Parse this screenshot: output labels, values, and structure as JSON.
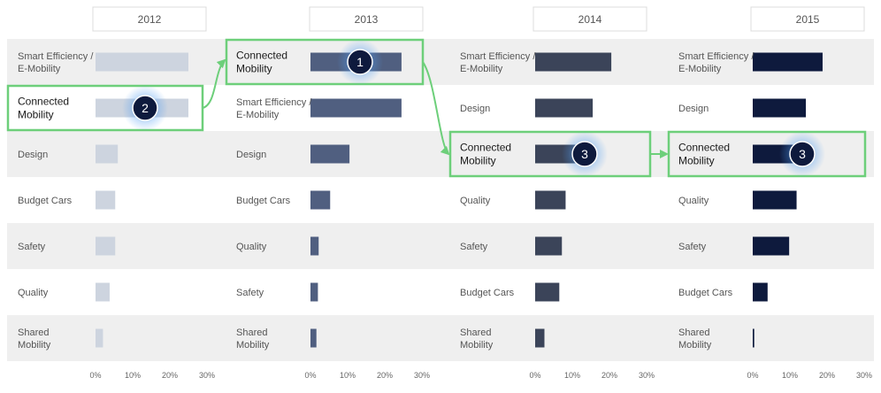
{
  "colors": {
    "2012": "#cdd4df",
    "2013": "#505f80",
    "2014": "#3b4459",
    "2015": "#0e1a3d",
    "band": "#efefef",
    "highlight": "#6dcf7a",
    "badge": "#0e1a3d",
    "glow": "#4f9cf0"
  },
  "chart_data": {
    "type": "bar",
    "orientation": "horizontal",
    "xlim": [
      0,
      30
    ],
    "x_ticks": [
      "0%",
      "10%",
      "20%",
      "30%"
    ],
    "panels": [
      {
        "year": "2012",
        "bars": [
          {
            "label": [
              "Smart Efficiency /",
              "E-Mobility"
            ],
            "value": 25
          },
          {
            "label": [
              "Connected",
              "Mobility"
            ],
            "value": 25,
            "highlight": true,
            "badge": "2"
          },
          {
            "label": [
              "Design"
            ],
            "value": 6
          },
          {
            "label": [
              "Budget Cars"
            ],
            "value": 5.3
          },
          {
            "label": [
              "Safety"
            ],
            "value": 5.3
          },
          {
            "label": [
              "Quality"
            ],
            "value": 3.8
          },
          {
            "label": [
              "Shared",
              "Mobility"
            ],
            "value": 2
          }
        ]
      },
      {
        "year": "2013",
        "bars": [
          {
            "label": [
              "Connected",
              "Mobility"
            ],
            "value": 24.5,
            "highlight": true,
            "badge": "1"
          },
          {
            "label": [
              "Smart Efficiency /",
              "E-Mobility"
            ],
            "value": 24.5
          },
          {
            "label": [
              "Design"
            ],
            "value": 10.5
          },
          {
            "label": [
              "Budget Cars"
            ],
            "value": 5.3
          },
          {
            "label": [
              "Quality"
            ],
            "value": 2.2
          },
          {
            "label": [
              "Safety"
            ],
            "value": 2
          },
          {
            "label": [
              "Shared",
              "Mobility"
            ],
            "value": 1.6
          }
        ]
      },
      {
        "year": "2014",
        "bars": [
          {
            "label": [
              "Smart Efficiency /",
              "E-Mobility"
            ],
            "value": 20.5
          },
          {
            "label": [
              "Design"
            ],
            "value": 15.5
          },
          {
            "label": [
              "Connected",
              "Mobility"
            ],
            "value": 13.5,
            "highlight": true,
            "badge": "3"
          },
          {
            "label": [
              "Quality"
            ],
            "value": 8.2
          },
          {
            "label": [
              "Safety"
            ],
            "value": 7.2
          },
          {
            "label": [
              "Budget Cars"
            ],
            "value": 6.5
          },
          {
            "label": [
              "Shared",
              "Mobility"
            ],
            "value": 2.5
          }
        ]
      },
      {
        "year": "2015",
        "bars": [
          {
            "label": [
              "Smart Efficiency /",
              "E-Mobility"
            ],
            "value": 18.8
          },
          {
            "label": [
              "Design"
            ],
            "value": 14.3
          },
          {
            "label": [
              "Connected",
              "Mobility"
            ],
            "value": 13,
            "highlight": true,
            "badge": "3"
          },
          {
            "label": [
              "Quality"
            ],
            "value": 11.8
          },
          {
            "label": [
              "Safety"
            ],
            "value": 9.8
          },
          {
            "label": [
              "Budget Cars"
            ],
            "value": 4
          },
          {
            "label": [
              "Shared",
              "Mobility"
            ],
            "value": 0.4
          }
        ]
      }
    ]
  }
}
